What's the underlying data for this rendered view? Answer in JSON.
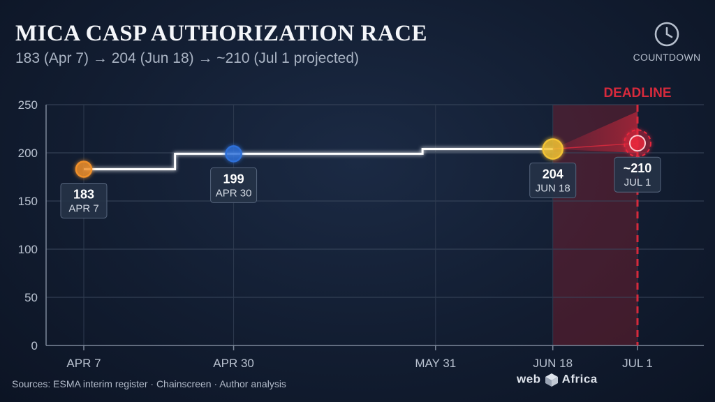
{
  "title": "MICA CASP AUTHORIZATION RACE",
  "subtitle": "183 (Apr 7) → 204 (Jun 18) → ~210 (Jul 1 projected)",
  "countdown": {
    "icon": "clock-icon",
    "label": "COUNTDOWN"
  },
  "footer": {
    "sources": "Sources: ESMA interim register · Chainscreen · Author analysis"
  },
  "brand": {
    "left": "web",
    "right": "Africa"
  },
  "colors": {
    "deadline": "#d72a3c",
    "apr7": "#f0902a",
    "apr30": "#2f6fd8",
    "jun18": "#f3c334",
    "jul1": "#e8283c",
    "line": "#ffffff"
  },
  "chart_data": {
    "type": "line",
    "x_ticks": [
      "2025-04-07",
      "2025-04-30",
      "2025-05-31",
      "2025-06-18",
      "2025-07-01"
    ],
    "x_tick_labels": [
      "APR 7",
      "APR 30",
      "MAY 31",
      "JUN 18",
      "JUL 1"
    ],
    "ylim": [
      0,
      250
    ],
    "y_ticks": [
      0,
      50,
      100,
      150,
      200,
      250
    ],
    "grid": true,
    "step_series": [
      {
        "x": "2025-04-07",
        "y": 183
      },
      {
        "x": "2025-04-21",
        "y": 199
      },
      {
        "x": "2025-05-29",
        "y": 204
      },
      {
        "x": "2025-06-18",
        "y": 204
      }
    ],
    "projection": {
      "x": "2025-07-01",
      "y": 210,
      "range": [
        200,
        243
      ]
    },
    "points": [
      {
        "x": "2025-04-07",
        "y": 183,
        "value": "183",
        "date": "APR 7",
        "color": "#f0902a",
        "label_below": true
      },
      {
        "x": "2025-04-30",
        "y": 199,
        "value": "199",
        "date": "APR 30",
        "color": "#2f6fd8",
        "label_below": true
      },
      {
        "x": "2025-06-18",
        "y": 204,
        "value": "204",
        "date": "JUN 18",
        "color": "#f3c334",
        "label_below": true
      },
      {
        "x": "2025-07-01",
        "y": 210,
        "value": "~210",
        "date": "JUL 1",
        "color": "#e8283c",
        "label_below": true,
        "projected": true
      }
    ],
    "deadline": {
      "x": "2025-07-01",
      "label": "DEADLINE",
      "shade_from": "2025-06-18"
    }
  }
}
